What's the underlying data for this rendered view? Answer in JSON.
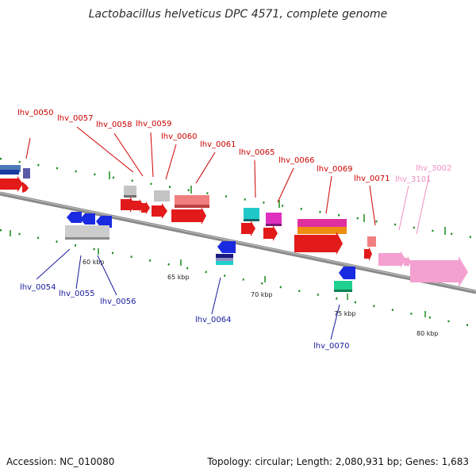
{
  "title": "Lactobacillus helveticus DPC 4571, complete genome",
  "footer": {
    "accession": "Accession: NC_010080",
    "summary": "Topology: circular; Length: 2,080,931 bp; Genes: 1,683"
  },
  "colors": {
    "forward_label": "#cc0000",
    "reverse_label": "#1a1aa0",
    "pseudo_label": "#f090c0",
    "backbone": "#8a8a8a",
    "tick": "#1a8a1a"
  },
  "scale_labels": [
    "60 kbp",
    "65 kbp",
    "70 kbp",
    "75 kbp",
    "80 kbp"
  ],
  "genes": {
    "forward": [
      "lhv_0050",
      "lhv_0057",
      "lhv_0058",
      "lhv_0059",
      "lhv_0060",
      "lhv_0061",
      "lhv_0065",
      "lhv_0066",
      "lhv_0069",
      "lhv_0071"
    ],
    "reverse": [
      "lhv_0054",
      "lhv_0055",
      "lhv_0056",
      "lhv_0064",
      "lhv_0070"
    ],
    "pseudo": [
      "lhv_3101",
      "lhv_3002"
    ]
  }
}
